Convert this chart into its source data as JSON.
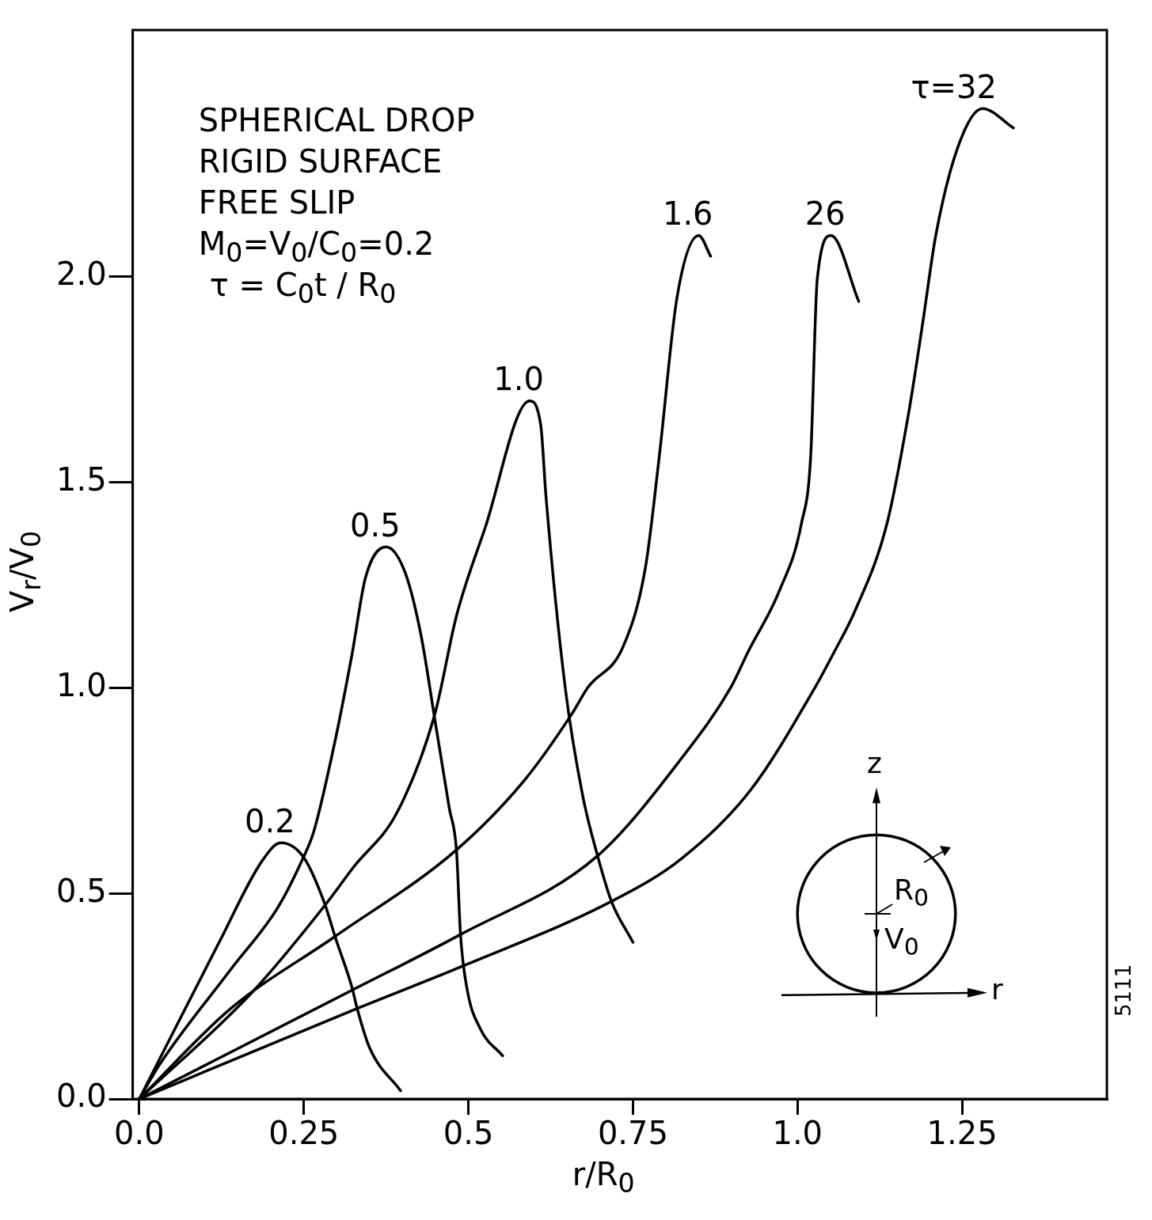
{
  "chart_data": {
    "type": "line",
    "xlabel": "r/R$_{0}$",
    "ylabel": "V$_{r}$/V$_{0}$",
    "annotations": [
      "SPHERICAL DROP",
      "RIGID SURFACE",
      "FREE SLIP",
      "M$_{0}$=V$_{0}$/C$_{0}$=0.2",
      "τ = C$_{0}$t / R$_{0}$",
      "z",
      "R$_{0}$",
      "V$_{0}$",
      "r",
      "5111"
    ],
    "series": [
      {
        "name": "0.2",
        "color": "#000000",
        "x": [
          0,
          0.121,
          0.187,
          0.215,
          0.25,
          0.281,
          0.298,
          0.323,
          0.331,
          0.35,
          0.397
        ],
        "values": [
          0,
          0.38,
          0.58,
          0.623,
          0.587,
          0.478,
          0.392,
          0.272,
          0.22,
          0.124,
          0.02
        ]
      },
      {
        "name": "0.5",
        "color": "#000000",
        "x": [
          0,
          0.031,
          0.139,
          0.211,
          0.248,
          0.265,
          0.296,
          0.323,
          0.344,
          0.375,
          0.404,
          0.428,
          0.449,
          0.471,
          0.482,
          0.488,
          0.498,
          0.518,
          0.552
        ],
        "values": [
          0,
          0.084,
          0.315,
          0.467,
          0.583,
          0.65,
          0.86,
          1.08,
          1.27,
          1.343,
          1.28,
          1.128,
          0.923,
          0.707,
          0.602,
          0.4,
          0.267,
          0.171,
          0.105
        ]
      },
      {
        "name": "1.0",
        "color": "#000000",
        "x": [
          0,
          0.17,
          0.283,
          0.325,
          0.392,
          0.449,
          0.482,
          0.525,
          0.593,
          0.61,
          0.618,
          0.647,
          0.674,
          0.696,
          0.717,
          0.75
        ],
        "values": [
          0,
          0.257,
          0.473,
          0.563,
          0.698,
          0.936,
          1.176,
          1.387,
          1.698,
          1.638,
          1.463,
          1.002,
          0.735,
          0.593,
          0.482,
          0.381
        ]
      },
      {
        "name": "1.6",
        "color": "#000000",
        "x": [
          0,
          0.139,
          0.298,
          0.482,
          0.585,
          0.657,
          0.682,
          0.735,
          0.769,
          0.79,
          0.817,
          0.85,
          0.868
        ],
        "values": [
          0,
          0.22,
          0.396,
          0.606,
          0.775,
          0.936,
          1.002,
          1.1,
          1.293,
          1.563,
          1.95,
          2.1,
          2.05
        ]
      },
      {
        "name": "26",
        "color": "#000000",
        "x": [
          0,
          0.325,
          0.488,
          0.696,
          0.824,
          0.899,
          0.925,
          0.973,
          1.006,
          1.02,
          1.03,
          1.051,
          1.093
        ],
        "values": [
          0,
          0.266,
          0.4,
          0.591,
          0.829,
          1.002,
          1.088,
          1.238,
          1.4,
          1.563,
          1.994,
          2.1,
          1.94
        ]
      },
      {
        "name": "τ=32",
        "color": "#000000",
        "x": [
          0,
          0.331,
          0.494,
          0.719,
          0.824,
          0.929,
          1.027,
          1.056,
          1.087,
          1.136,
          1.169,
          1.19,
          1.21,
          1.244,
          1.281,
          1.328
        ],
        "values": [
          0,
          0.22,
          0.325,
          0.482,
          0.585,
          0.752,
          1.002,
          1.088,
          1.186,
          1.4,
          1.67,
          1.885,
          2.1,
          2.317,
          2.409,
          2.362
        ]
      }
    ],
    "xlim": [
      -0.01,
      1.47
    ],
    "ylim": [
      0,
      2.6
    ],
    "xticks": [
      {
        "value": 0,
        "label": "0.0"
      },
      0.25,
      0.5,
      0.75,
      {
        "value": 1,
        "label": "1.0"
      },
      1.25
    ],
    "yticks": [
      {
        "value": 0,
        "label": "0.0"
      },
      0.5,
      {
        "value": 1,
        "label": "1.0"
      },
      1.5,
      {
        "value": 2,
        "label": "2.0"
      }
    ],
    "grid": false,
    "legend": false,
    "marker": "none",
    "line_style": "solid"
  }
}
